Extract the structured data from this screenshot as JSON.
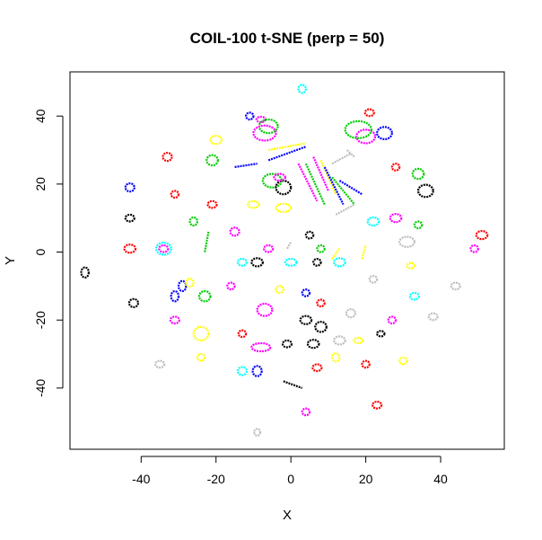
{
  "chart_data": {
    "type": "scatter",
    "title": "COIL-100 t-SNE (perp = 50)",
    "xlabel": "X",
    "ylabel": "Y",
    "xlim": [
      -59,
      57
    ],
    "ylim": [
      -58,
      53
    ],
    "x_ticks": [
      -40,
      -20,
      0,
      20,
      40
    ],
    "x_tick_labels": [
      "-40",
      "-20",
      "0",
      "20",
      "40"
    ],
    "y_ticks": [
      -40,
      -20,
      0,
      20,
      40
    ],
    "y_tick_labels": [
      "-40",
      "-20",
      "0",
      "20",
      "40"
    ],
    "grid": false,
    "legend": "none",
    "colors": [
      "#000000",
      "#ff0000",
      "#00cd00",
      "#0000ff",
      "#00ffff",
      "#ff00ff",
      "#ffff00",
      "#bebebe"
    ],
    "clusters": [
      {
        "shape": "loop",
        "cx": 3,
        "cy": 48,
        "rx": 1.0,
        "ry": 1.2,
        "color": "#00ffff"
      },
      {
        "shape": "loop",
        "cx": 21,
        "cy": 41,
        "rx": 1.2,
        "ry": 1.0,
        "color": "#ff0000"
      },
      {
        "shape": "loop",
        "cx": -11,
        "cy": 40,
        "rx": 1.0,
        "ry": 1.0,
        "color": "#0000ff"
      },
      {
        "shape": "loop",
        "cx": -8,
        "cy": 39,
        "rx": 1.2,
        "ry": 0.8,
        "color": "#ff00ff"
      },
      {
        "shape": "loop",
        "cx": -6,
        "cy": 37,
        "rx": 2.5,
        "ry": 2.0,
        "color": "#00cd00"
      },
      {
        "shape": "loop",
        "cx": -7,
        "cy": 35,
        "rx": 3.0,
        "ry": 2.2,
        "color": "#ff00ff"
      },
      {
        "shape": "loop",
        "cx": 20,
        "cy": 34,
        "rx": 2.5,
        "ry": 2.0,
        "color": "#ff00ff"
      },
      {
        "shape": "loop",
        "cx": 18,
        "cy": 36,
        "rx": 3.5,
        "ry": 2.5,
        "color": "#00cd00"
      },
      {
        "shape": "loop",
        "cx": 25,
        "cy": 35,
        "rx": 2.0,
        "ry": 1.8,
        "color": "#0000ff"
      },
      {
        "shape": "loop",
        "cx": -20,
        "cy": 33,
        "rx": 1.5,
        "ry": 1.2,
        "color": "#ffff00"
      },
      {
        "shape": "line",
        "x1": -6,
        "y1": 30,
        "x2": 4,
        "y2": 32,
        "color": "#ffff00"
      },
      {
        "shape": "line",
        "x1": -6,
        "y1": 27,
        "x2": 4,
        "y2": 31,
        "color": "#0000ff"
      },
      {
        "shape": "loop",
        "cx": -33,
        "cy": 28,
        "rx": 1.2,
        "ry": 1.2,
        "color": "#ff0000"
      },
      {
        "shape": "loop",
        "cx": -21,
        "cy": 27,
        "rx": 1.5,
        "ry": 1.5,
        "color": "#00cd00"
      },
      {
        "shape": "line",
        "x1": -15,
        "y1": 25,
        "x2": -9,
        "y2": 26,
        "color": "#0000ff"
      },
      {
        "shape": "line",
        "x1": 6,
        "y1": 28,
        "x2": 10,
        "y2": 18,
        "color": "#ff00ff"
      },
      {
        "shape": "line",
        "x1": 8,
        "y1": 27,
        "x2": 12,
        "y2": 17,
        "color": "#ffff00"
      },
      {
        "shape": "line",
        "x1": 2,
        "y1": 26,
        "x2": 7,
        "y2": 15,
        "color": "#ff00ff"
      },
      {
        "shape": "line",
        "x1": 4,
        "y1": 26,
        "x2": 9,
        "y2": 14,
        "color": "#00cd00"
      },
      {
        "shape": "line",
        "x1": 9,
        "y1": 25,
        "x2": 14,
        "y2": 14,
        "color": "#0000ff"
      },
      {
        "shape": "line",
        "x1": 11,
        "y1": 22,
        "x2": 17,
        "y2": 14,
        "color": "#00cd00"
      },
      {
        "shape": "line",
        "x1": 13,
        "y1": 21,
        "x2": 19,
        "y2": 17,
        "color": "#0000ff"
      },
      {
        "shape": "line",
        "x1": 11,
        "y1": 26,
        "x2": 16,
        "y2": 29,
        "color": "#bebebe"
      },
      {
        "shape": "line",
        "x1": 15,
        "y1": 30,
        "x2": 17,
        "y2": 28,
        "color": "#bebebe"
      },
      {
        "shape": "loop",
        "cx": -5,
        "cy": 21,
        "rx": 2.5,
        "ry": 2.0,
        "color": "#00cd00"
      },
      {
        "shape": "loop",
        "cx": -2,
        "cy": 19,
        "rx": 2.0,
        "ry": 2.0,
        "color": "#000000"
      },
      {
        "shape": "loop",
        "cx": -3,
        "cy": 22,
        "rx": 1.5,
        "ry": 1.0,
        "color": "#ff00ff"
      },
      {
        "shape": "loop",
        "cx": 34,
        "cy": 23,
        "rx": 1.5,
        "ry": 1.5,
        "color": "#00cd00"
      },
      {
        "shape": "loop",
        "cx": 28,
        "cy": 25,
        "rx": 1.0,
        "ry": 1.0,
        "color": "#ff0000"
      },
      {
        "shape": "loop",
        "cx": -43,
        "cy": 19,
        "rx": 1.2,
        "ry": 1.2,
        "color": "#0000ff"
      },
      {
        "shape": "loop",
        "cx": -31,
        "cy": 17,
        "rx": 1.0,
        "ry": 1.0,
        "color": "#ff0000"
      },
      {
        "shape": "loop",
        "cx": 36,
        "cy": 18,
        "rx": 2.0,
        "ry": 1.8,
        "color": "#000000"
      },
      {
        "shape": "loop",
        "cx": -10,
        "cy": 14,
        "rx": 1.5,
        "ry": 1.0,
        "color": "#ffff00"
      },
      {
        "shape": "loop",
        "cx": -2,
        "cy": 13,
        "rx": 2.0,
        "ry": 1.2,
        "color": "#ffff00"
      },
      {
        "shape": "loop",
        "cx": -21,
        "cy": 14,
        "rx": 1.2,
        "ry": 1.0,
        "color": "#ff0000"
      },
      {
        "shape": "loop",
        "cx": -43,
        "cy": 10,
        "rx": 1.2,
        "ry": 1.0,
        "color": "#000000"
      },
      {
        "shape": "loop",
        "cx": -26,
        "cy": 9,
        "rx": 1.0,
        "ry": 1.2,
        "color": "#00cd00"
      },
      {
        "shape": "line",
        "x1": 12,
        "y1": 11,
        "x2": 17,
        "y2": 14,
        "color": "#bebebe"
      },
      {
        "shape": "loop",
        "cx": 22,
        "cy": 9,
        "rx": 1.5,
        "ry": 1.2,
        "color": "#00ffff"
      },
      {
        "shape": "loop",
        "cx": 28,
        "cy": 10,
        "rx": 1.5,
        "ry": 1.2,
        "color": "#ff00ff"
      },
      {
        "shape": "loop",
        "cx": 34,
        "cy": 8,
        "rx": 1.0,
        "ry": 1.0,
        "color": "#00cd00"
      },
      {
        "shape": "loop",
        "cx": -15,
        "cy": 6,
        "rx": 1.2,
        "ry": 1.2,
        "color": "#ff00ff"
      },
      {
        "shape": "line",
        "x1": -23,
        "y1": 0,
        "x2": -22,
        "y2": 6,
        "color": "#00cd00"
      },
      {
        "shape": "loop",
        "cx": 5,
        "cy": 5,
        "rx": 1.0,
        "ry": 1.0,
        "color": "#000000"
      },
      {
        "shape": "loop",
        "cx": 31,
        "cy": 3,
        "rx": 2.0,
        "ry": 1.5,
        "color": "#bebebe"
      },
      {
        "shape": "loop",
        "cx": 51,
        "cy": 5,
        "rx": 1.5,
        "ry": 1.2,
        "color": "#ff0000"
      },
      {
        "shape": "loop",
        "cx": 49,
        "cy": 1,
        "rx": 1.0,
        "ry": 1.0,
        "color": "#ff00ff"
      },
      {
        "shape": "loop",
        "cx": -43,
        "cy": 1,
        "rx": 1.5,
        "ry": 1.2,
        "color": "#ff0000"
      },
      {
        "shape": "loop",
        "cx": -34,
        "cy": 1,
        "rx": 2.0,
        "ry": 1.8,
        "color": "#00ffff"
      },
      {
        "shape": "loop",
        "cx": -34,
        "cy": 1,
        "rx": 1.2,
        "ry": 1.0,
        "color": "#ff00ff"
      },
      {
        "shape": "loop",
        "cx": -6,
        "cy": 1,
        "rx": 1.2,
        "ry": 1.0,
        "color": "#ff00ff"
      },
      {
        "shape": "line",
        "x1": -1,
        "y1": 1,
        "x2": 0,
        "y2": 3,
        "color": "#bebebe"
      },
      {
        "shape": "loop",
        "cx": 8,
        "cy": 1,
        "rx": 1.0,
        "ry": 1.0,
        "color": "#00cd00"
      },
      {
        "shape": "line",
        "x1": 11,
        "y1": -2,
        "x2": 13,
        "y2": 1,
        "color": "#ffff00"
      },
      {
        "shape": "line",
        "x1": 19,
        "y1": -2,
        "x2": 20,
        "y2": 2,
        "color": "#ffff00"
      },
      {
        "shape": "loop",
        "cx": -9,
        "cy": -3,
        "rx": 1.5,
        "ry": 1.2,
        "color": "#000000"
      },
      {
        "shape": "loop",
        "cx": -13,
        "cy": -3,
        "rx": 1.2,
        "ry": 1.0,
        "color": "#00ffff"
      },
      {
        "shape": "loop",
        "cx": 0,
        "cy": -3,
        "rx": 1.5,
        "ry": 1.0,
        "color": "#00ffff"
      },
      {
        "shape": "loop",
        "cx": 7,
        "cy": -3,
        "rx": 1.0,
        "ry": 1.0,
        "color": "#000000"
      },
      {
        "shape": "loop",
        "cx": 13,
        "cy": -3,
        "rx": 1.5,
        "ry": 1.2,
        "color": "#00ffff"
      },
      {
        "shape": "loop",
        "cx": 32,
        "cy": -4,
        "rx": 1.0,
        "ry": 0.8,
        "color": "#ffff00"
      },
      {
        "shape": "loop",
        "cx": -55,
        "cy": -6,
        "rx": 1.0,
        "ry": 1.5,
        "color": "#000000"
      },
      {
        "shape": "loop",
        "cx": -29,
        "cy": -10,
        "rx": 1.0,
        "ry": 1.5,
        "color": "#0000ff"
      },
      {
        "shape": "loop",
        "cx": -27,
        "cy": -9,
        "rx": 1.0,
        "ry": 1.2,
        "color": "#ffff00"
      },
      {
        "shape": "loop",
        "cx": -16,
        "cy": -10,
        "rx": 1.0,
        "ry": 1.0,
        "color": "#ff00ff"
      },
      {
        "shape": "loop",
        "cx": 22,
        "cy": -8,
        "rx": 1.0,
        "ry": 1.0,
        "color": "#bebebe"
      },
      {
        "shape": "loop",
        "cx": 44,
        "cy": -10,
        "rx": 1.2,
        "ry": 1.0,
        "color": "#bebebe"
      },
      {
        "shape": "loop",
        "cx": -42,
        "cy": -15,
        "rx": 1.2,
        "ry": 1.2,
        "color": "#000000"
      },
      {
        "shape": "loop",
        "cx": -23,
        "cy": -13,
        "rx": 1.5,
        "ry": 1.5,
        "color": "#00cd00"
      },
      {
        "shape": "loop",
        "cx": -31,
        "cy": -13,
        "rx": 1.0,
        "ry": 1.5,
        "color": "#0000ff"
      },
      {
        "shape": "loop",
        "cx": 4,
        "cy": -12,
        "rx": 1.0,
        "ry": 1.0,
        "color": "#0000ff"
      },
      {
        "shape": "loop",
        "cx": -3,
        "cy": -11,
        "rx": 1.0,
        "ry": 1.0,
        "color": "#ffff00"
      },
      {
        "shape": "loop",
        "cx": 33,
        "cy": -13,
        "rx": 1.2,
        "ry": 1.0,
        "color": "#00ffff"
      },
      {
        "shape": "loop",
        "cx": 8,
        "cy": -15,
        "rx": 1.0,
        "ry": 1.0,
        "color": "#ff0000"
      },
      {
        "shape": "loop",
        "cx": -7,
        "cy": -17,
        "rx": 2.0,
        "ry": 1.8,
        "color": "#ff00ff"
      },
      {
        "shape": "loop",
        "cx": -31,
        "cy": -20,
        "rx": 1.2,
        "ry": 1.0,
        "color": "#ff00ff"
      },
      {
        "shape": "loop",
        "cx": 4,
        "cy": -20,
        "rx": 1.5,
        "ry": 1.2,
        "color": "#000000"
      },
      {
        "shape": "loop",
        "cx": 8,
        "cy": -22,
        "rx": 1.5,
        "ry": 1.5,
        "color": "#000000"
      },
      {
        "shape": "loop",
        "cx": 16,
        "cy": -18,
        "rx": 1.2,
        "ry": 1.2,
        "color": "#bebebe"
      },
      {
        "shape": "loop",
        "cx": 27,
        "cy": -20,
        "rx": 1.0,
        "ry": 1.0,
        "color": "#ff00ff"
      },
      {
        "shape": "loop",
        "cx": 38,
        "cy": -19,
        "rx": 1.2,
        "ry": 1.0,
        "color": "#bebebe"
      },
      {
        "shape": "loop",
        "cx": -24,
        "cy": -24,
        "rx": 2.0,
        "ry": 2.0,
        "color": "#ffff00"
      },
      {
        "shape": "loop",
        "cx": -13,
        "cy": -24,
        "rx": 1.0,
        "ry": 1.0,
        "color": "#ff0000"
      },
      {
        "shape": "loop",
        "cx": -8,
        "cy": -28,
        "rx": 2.5,
        "ry": 1.2,
        "color": "#ff00ff"
      },
      {
        "shape": "loop",
        "cx": -1,
        "cy": -27,
        "rx": 1.2,
        "ry": 1.0,
        "color": "#000000"
      },
      {
        "shape": "loop",
        "cx": 6,
        "cy": -27,
        "rx": 1.5,
        "ry": 1.2,
        "color": "#000000"
      },
      {
        "shape": "loop",
        "cx": 13,
        "cy": -26,
        "rx": 1.5,
        "ry": 1.2,
        "color": "#bebebe"
      },
      {
        "shape": "loop",
        "cx": 18,
        "cy": -26,
        "rx": 1.2,
        "ry": 0.8,
        "color": "#ffff00"
      },
      {
        "shape": "loop",
        "cx": 24,
        "cy": -24,
        "rx": 1.0,
        "ry": 0.8,
        "color": "#000000"
      },
      {
        "shape": "loop",
        "cx": -24,
        "cy": -31,
        "rx": 1.0,
        "ry": 1.0,
        "color": "#ffff00"
      },
      {
        "shape": "loop",
        "cx": 12,
        "cy": -31,
        "rx": 1.0,
        "ry": 1.2,
        "color": "#ffff00"
      },
      {
        "shape": "loop",
        "cx": 30,
        "cy": -32,
        "rx": 1.0,
        "ry": 1.0,
        "color": "#ffff00"
      },
      {
        "shape": "loop",
        "cx": -35,
        "cy": -33,
        "rx": 1.2,
        "ry": 1.0,
        "color": "#bebebe"
      },
      {
        "shape": "loop",
        "cx": -13,
        "cy": -35,
        "rx": 1.2,
        "ry": 1.2,
        "color": "#00ffff"
      },
      {
        "shape": "loop",
        "cx": -9,
        "cy": -35,
        "rx": 1.2,
        "ry": 1.5,
        "color": "#0000ff"
      },
      {
        "shape": "loop",
        "cx": 7,
        "cy": -34,
        "rx": 1.2,
        "ry": 1.0,
        "color": "#ff0000"
      },
      {
        "shape": "loop",
        "cx": 20,
        "cy": -33,
        "rx": 1.0,
        "ry": 1.0,
        "color": "#ff0000"
      },
      {
        "shape": "line",
        "x1": -2,
        "y1": -38,
        "x2": 3,
        "y2": -40,
        "color": "#000000"
      },
      {
        "shape": "loop",
        "cx": 4,
        "cy": -47,
        "rx": 1.0,
        "ry": 1.0,
        "color": "#ff00ff"
      },
      {
        "shape": "loop",
        "cx": 23,
        "cy": -45,
        "rx": 1.2,
        "ry": 1.0,
        "color": "#ff0000"
      },
      {
        "shape": "loop",
        "cx": -9,
        "cy": -53,
        "rx": 0.8,
        "ry": 1.0,
        "color": "#bebebe"
      }
    ]
  }
}
